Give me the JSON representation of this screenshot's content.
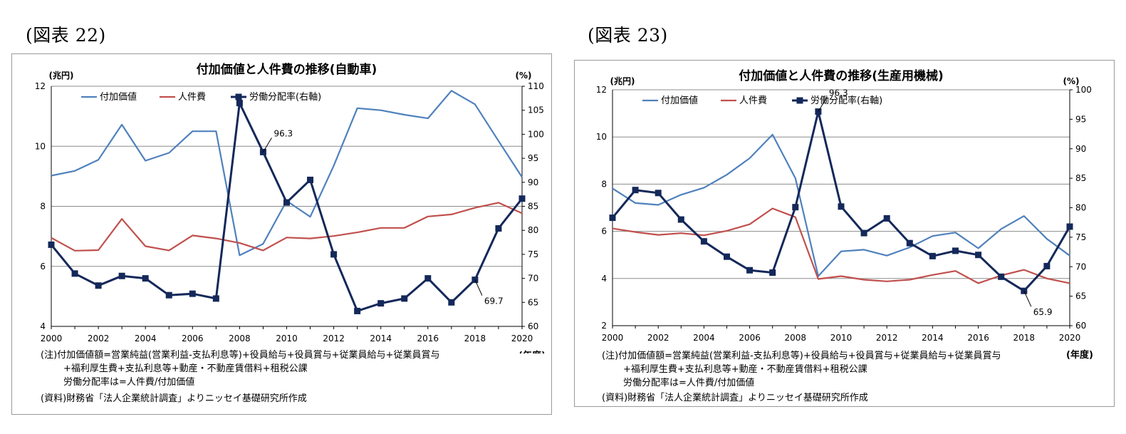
{
  "figures": [
    {
      "label": "(図表 22)",
      "chart_data": {
        "type": "line",
        "title": "付加価値と人件費の推移(自動車)",
        "ylabel_left": "(兆円)",
        "ylabel_right": "(%)",
        "xlabel": "(年度)",
        "x": [
          2000,
          2001,
          2002,
          2003,
          2004,
          2005,
          2006,
          2007,
          2008,
          2009,
          2010,
          2011,
          2012,
          2013,
          2014,
          2015,
          2016,
          2017,
          2018,
          2019,
          2020
        ],
        "x_ticks": [
          "2000",
          "2002",
          "2004",
          "2006",
          "2008",
          "2010",
          "2012",
          "2014",
          "2016",
          "2018",
          "2020"
        ],
        "y_left_range": [
          4,
          12
        ],
        "y_left_ticks": [
          "4",
          "6",
          "8",
          "10",
          "12"
        ],
        "y_right_range": [
          60,
          110
        ],
        "y_right_ticks": [
          "60",
          "65",
          "70",
          "75",
          "80",
          "85",
          "90",
          "95",
          "100",
          "105",
          "110"
        ],
        "grid": "horizontal",
        "legend_position": "top-left",
        "series": [
          {
            "name": "付加価値",
            "axis": "left",
            "color": "#4f81bd",
            "marker": false,
            "values": [
              9.02,
              9.18,
              9.55,
              10.72,
              9.52,
              9.78,
              10.5,
              10.5,
              6.37,
              6.75,
              8.18,
              7.65,
              9.35,
              11.27,
              11.2,
              11.05,
              10.93,
              11.85,
              11.4,
              10.18,
              8.97
            ]
          },
          {
            "name": "人件費",
            "axis": "left",
            "color": "#c0504d",
            "marker": false,
            "values": [
              6.95,
              6.52,
              6.54,
              7.58,
              6.67,
              6.53,
              7.03,
              6.93,
              6.78,
              6.53,
              6.96,
              6.93,
              7.01,
              7.13,
              7.28,
              7.28,
              7.66,
              7.73,
              7.95,
              8.12,
              7.77
            ]
          },
          {
            "name": "労働分配率(右軸)",
            "axis": "right",
            "color": "#14285a",
            "marker": true,
            "values": [
              77.0,
              71.0,
              68.5,
              70.5,
              70.0,
              66.5,
              66.8,
              65.8,
              106.5,
              96.3,
              85.8,
              90.5,
              75.0,
              63.2,
              64.8,
              65.8,
              70.0,
              65.0,
              69.7,
              80.4,
              86.6
            ]
          }
        ],
        "annotations": [
          {
            "text": "96.3",
            "x": 2009,
            "y": 96.3
          },
          {
            "text": "69.7",
            "x": 2018,
            "y": 69.7
          }
        ]
      },
      "notes": [
        "(注)付加価値額=営業純益(営業利益-支払利息等)+役員給与+役員賞与+従業員給与+従業員賞与",
        "+福利厚生費+支払利息等+動産・不動産賃借料+租税公課",
        "労働分配率は=人件費/付加価値",
        "(資料)財務省「法人企業統計調査」よりニッセイ基礎研究所作成"
      ]
    },
    {
      "label": "(図表 23)",
      "chart_data": {
        "type": "line",
        "title": "付加価値と人件費の推移(生産用機械)",
        "ylabel_left": "(兆円)",
        "ylabel_right": "(%)",
        "xlabel": "(年度)",
        "x": [
          2000,
          2001,
          2002,
          2003,
          2004,
          2005,
          2006,
          2007,
          2008,
          2009,
          2010,
          2011,
          2012,
          2013,
          2014,
          2015,
          2016,
          2017,
          2018,
          2019,
          2020
        ],
        "x_ticks": [
          "2000",
          "2002",
          "2004",
          "2006",
          "2008",
          "2010",
          "2012",
          "2014",
          "2016",
          "2018",
          "2020"
        ],
        "y_left_range": [
          2,
          12
        ],
        "y_left_ticks": [
          "2",
          "4",
          "6",
          "8",
          "10",
          "12"
        ],
        "y_right_range": [
          60,
          100
        ],
        "y_right_ticks": [
          "60",
          "65",
          "70",
          "75",
          "80",
          "85",
          "90",
          "95",
          "100"
        ],
        "grid": "horizontal",
        "legend_position": "top-left",
        "series": [
          {
            "name": "付加価値",
            "axis": "left",
            "color": "#4f81bd",
            "marker": false,
            "values": [
              7.82,
              7.2,
              7.12,
              7.55,
              7.85,
              8.4,
              9.1,
              10.1,
              8.25,
              4.1,
              5.15,
              5.22,
              4.97,
              5.32,
              5.8,
              5.95,
              5.28,
              6.1,
              6.65,
              5.68,
              4.97
            ]
          },
          {
            "name": "人件費",
            "axis": "left",
            "color": "#c0504d",
            "marker": false,
            "values": [
              6.12,
              5.97,
              5.85,
              5.92,
              5.83,
              6.02,
              6.3,
              6.97,
              6.6,
              3.98,
              4.1,
              3.95,
              3.88,
              3.95,
              4.15,
              4.32,
              3.8,
              4.13,
              4.37,
              4.0,
              3.8
            ]
          },
          {
            "name": "労働分配率(右軸)",
            "axis": "right",
            "color": "#14285a",
            "marker": true,
            "values": [
              78.3,
              83.0,
              82.5,
              78.0,
              74.3,
              71.7,
              69.4,
              69.0,
              80.1,
              96.3,
              80.2,
              75.7,
              78.2,
              74.0,
              71.8,
              72.7,
              72.0,
              68.3,
              65.9,
              70.1,
              76.8
            ]
          }
        ],
        "annotations": [
          {
            "text": "96.3",
            "x": 2009,
            "y": 96.3
          },
          {
            "text": "65.9",
            "x": 2018,
            "y": 65.9
          }
        ]
      },
      "notes": [
        "(注)付加価値額=営業純益(営業利益-支払利息等)+役員給与+役員賞与+従業員給与+従業員賞与",
        "+福利厚生費+支払利息等+動産・不動産賃借料+租税公課",
        "労働分配率は=人件費/付加価値",
        "(資料)財務省「法人企業統計調査」よりニッセイ基礎研究所作成"
      ]
    }
  ]
}
